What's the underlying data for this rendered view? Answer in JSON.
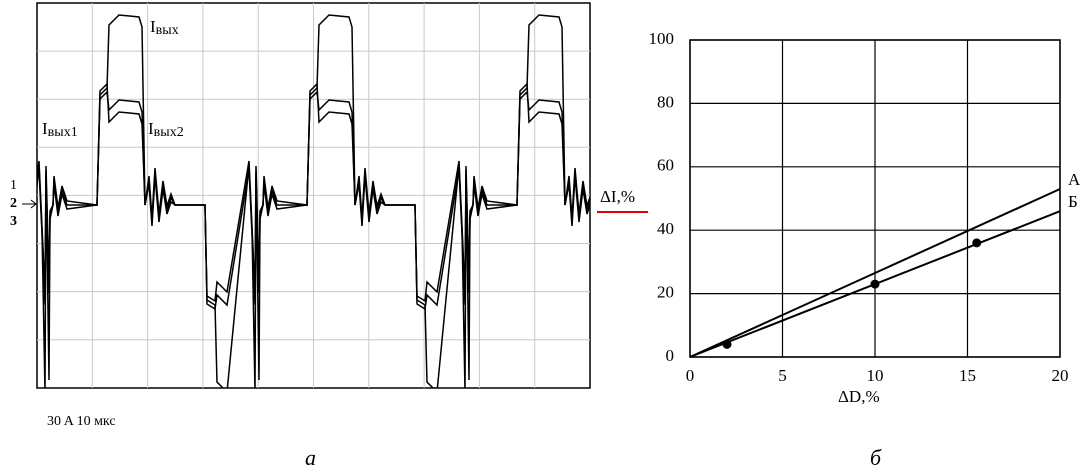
{
  "oscillogram": {
    "labels": {
      "i_out": {
        "main": "I",
        "sub": "вых"
      },
      "i_out1": {
        "main": "I",
        "sub": "вых1"
      },
      "i_out2": {
        "main": "I",
        "sub": "вых2"
      }
    },
    "channels": [
      "1",
      "2",
      "3"
    ],
    "scale": "30 A  10 мкс",
    "panel_label": "а"
  },
  "chart_data": {
    "type": "line",
    "panel_label": "б",
    "x_label": "ΔD,%",
    "y_label": "ΔI,%",
    "series": [
      {
        "name": "А",
        "color": "#000000",
        "x": [
          0,
          20
        ],
        "values": [
          0,
          53
        ]
      },
      {
        "name": "Б",
        "color": "#000000",
        "x": [
          0,
          20
        ],
        "values": [
          0,
          46
        ]
      }
    ],
    "markers": {
      "color": "#000000",
      "x": [
        2,
        10,
        15.5
      ],
      "values": [
        4,
        23,
        36
      ]
    },
    "xlim": [
      0,
      20
    ],
    "ylim": [
      0,
      100
    ],
    "xticks": [
      0,
      5,
      10,
      15,
      20
    ],
    "yticks": [
      0,
      20,
      40,
      60,
      80,
      100
    ],
    "grid": true
  }
}
